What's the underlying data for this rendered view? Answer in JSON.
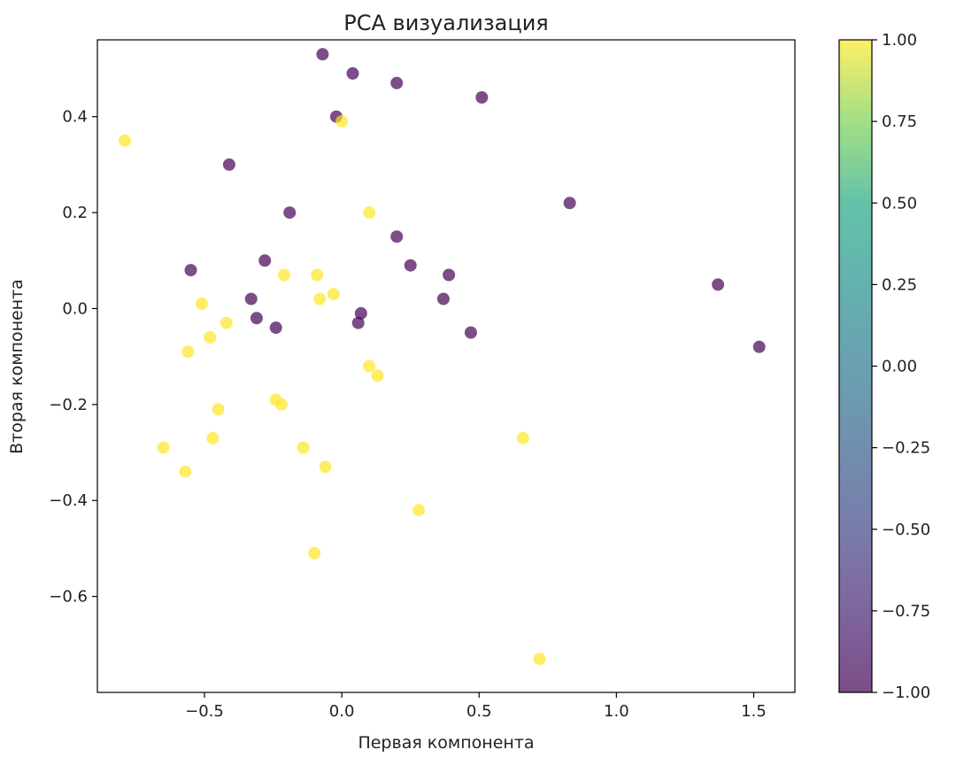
{
  "chart_data": {
    "type": "scatter",
    "title": "PCA визуализация",
    "xlabel": "Первая компонента",
    "ylabel": "Вторая компонента",
    "xlim": [
      -0.89,
      1.65
    ],
    "ylim": [
      -0.8,
      0.56
    ],
    "x_ticks": [
      -0.5,
      0.0,
      0.5,
      1.0,
      1.5
    ],
    "x_tick_labels": [
      "−0.5",
      "0.0",
      "0.5",
      "1.0",
      "1.5"
    ],
    "y_ticks": [
      -0.6,
      -0.4,
      -0.2,
      0.0,
      0.2,
      0.4
    ],
    "y_tick_labels": [
      "−0.6",
      "−0.4",
      "−0.2",
      "0.0",
      "0.2",
      "0.4"
    ],
    "grid": false,
    "colormap": "viridis",
    "alpha": 0.7,
    "colors": {
      "low": "#440154",
      "high": "#fde725"
    },
    "colorbar": {
      "range": [
        -1.0,
        1.0
      ],
      "ticks": [
        1.0,
        0.75,
        0.5,
        0.25,
        0.0,
        -0.25,
        -0.5,
        -0.75,
        -1.0
      ],
      "tick_labels": [
        "1.00",
        "0.75",
        "0.50",
        "0.25",
        "0.00",
        "−0.25",
        "−0.50",
        "−0.75",
        "−1.00"
      ]
    },
    "points": [
      {
        "x": -0.07,
        "y": 0.53,
        "c": -1
      },
      {
        "x": 0.04,
        "y": 0.49,
        "c": -1
      },
      {
        "x": 0.2,
        "y": 0.47,
        "c": -1
      },
      {
        "x": 0.51,
        "y": 0.44,
        "c": -1
      },
      {
        "x": -0.02,
        "y": 0.4,
        "c": -1
      },
      {
        "x": -0.41,
        "y": 0.3,
        "c": -1
      },
      {
        "x": -0.19,
        "y": 0.2,
        "c": -1
      },
      {
        "x": 0.83,
        "y": 0.22,
        "c": -1
      },
      {
        "x": 0.2,
        "y": 0.15,
        "c": -1
      },
      {
        "x": -0.28,
        "y": 0.1,
        "c": -1
      },
      {
        "x": 0.25,
        "y": 0.09,
        "c": -1
      },
      {
        "x": -0.55,
        "y": 0.08,
        "c": -1
      },
      {
        "x": 0.39,
        "y": 0.07,
        "c": -1
      },
      {
        "x": 1.37,
        "y": 0.05,
        "c": -1
      },
      {
        "x": -0.33,
        "y": 0.02,
        "c": -1
      },
      {
        "x": 0.37,
        "y": 0.02,
        "c": -1
      },
      {
        "x": -0.31,
        "y": -0.02,
        "c": -1
      },
      {
        "x": 0.07,
        "y": -0.01,
        "c": -1
      },
      {
        "x": 0.06,
        "y": -0.03,
        "c": -1
      },
      {
        "x": -0.24,
        "y": -0.04,
        "c": -1
      },
      {
        "x": 0.47,
        "y": -0.05,
        "c": -1
      },
      {
        "x": 1.52,
        "y": -0.08,
        "c": -1
      },
      {
        "x": -0.79,
        "y": 0.35,
        "c": 1
      },
      {
        "x": 0.0,
        "y": 0.39,
        "c": 1
      },
      {
        "x": 0.1,
        "y": 0.2,
        "c": 1
      },
      {
        "x": -0.09,
        "y": 0.07,
        "c": 1
      },
      {
        "x": -0.21,
        "y": 0.07,
        "c": 1
      },
      {
        "x": -0.08,
        "y": 0.02,
        "c": 1
      },
      {
        "x": -0.03,
        "y": 0.03,
        "c": 1
      },
      {
        "x": -0.51,
        "y": 0.01,
        "c": 1
      },
      {
        "x": -0.42,
        "y": -0.03,
        "c": 1
      },
      {
        "x": -0.48,
        "y": -0.06,
        "c": 1
      },
      {
        "x": -0.56,
        "y": -0.09,
        "c": 1
      },
      {
        "x": 0.1,
        "y": -0.12,
        "c": 1
      },
      {
        "x": 0.13,
        "y": -0.14,
        "c": 1
      },
      {
        "x": -0.24,
        "y": -0.19,
        "c": 1
      },
      {
        "x": -0.22,
        "y": -0.2,
        "c": 1
      },
      {
        "x": -0.45,
        "y": -0.21,
        "c": 1
      },
      {
        "x": -0.47,
        "y": -0.27,
        "c": 1
      },
      {
        "x": 0.66,
        "y": -0.27,
        "c": 1
      },
      {
        "x": -0.65,
        "y": -0.29,
        "c": 1
      },
      {
        "x": -0.14,
        "y": -0.29,
        "c": 1
      },
      {
        "x": -0.06,
        "y": -0.33,
        "c": 1
      },
      {
        "x": -0.57,
        "y": -0.34,
        "c": 1
      },
      {
        "x": 0.28,
        "y": -0.42,
        "c": 1
      },
      {
        "x": -0.1,
        "y": -0.51,
        "c": 1
      },
      {
        "x": 0.72,
        "y": -0.73,
        "c": 1
      }
    ]
  }
}
